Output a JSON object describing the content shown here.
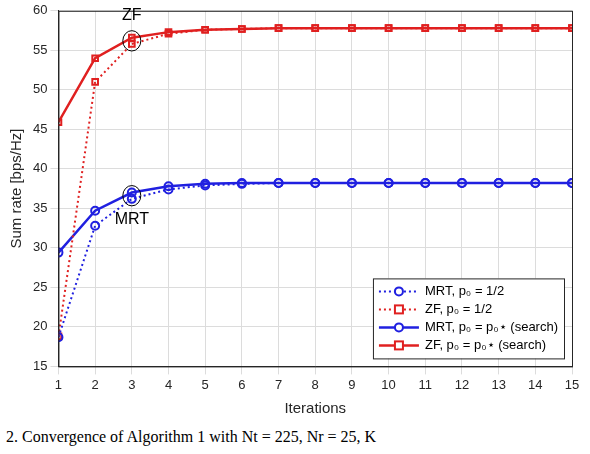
{
  "chart_data": {
    "type": "line",
    "x_label": "Iterations",
    "y_label": "Sum rate [bps/Hz]",
    "x": [
      1,
      2,
      3,
      4,
      5,
      6,
      7,
      8,
      9,
      10,
      11,
      12,
      13,
      14,
      15
    ],
    "series": [
      {
        "name": "MRT, p₀ = 1/2",
        "color": "#2020e0",
        "marker": "circle",
        "line_style": "dotted",
        "values": [
          18.7,
          32.8,
          36.2,
          37.4,
          37.9,
          38.1,
          38.2,
          38.2,
          38.2,
          38.2,
          38.2,
          38.2,
          38.2,
          38.2,
          38.2
        ]
      },
      {
        "name": "ZF, p₀ = 1/2",
        "color": "#e02020",
        "marker": "square",
        "line_style": "dotted",
        "values": [
          18.8,
          51.0,
          55.8,
          57.1,
          57.6,
          57.7,
          57.8,
          57.8,
          57.8,
          57.8,
          57.8,
          57.8,
          57.8,
          57.8,
          57.8
        ]
      },
      {
        "name": "MRT, p₀ = p₀⋆ (search)",
        "color": "#2020e0",
        "marker": "circle",
        "line_style": "solid",
        "values": [
          29.4,
          34.7,
          37.0,
          37.8,
          38.1,
          38.2,
          38.2,
          38.2,
          38.2,
          38.2,
          38.2,
          38.2,
          38.2,
          38.2,
          38.2
        ]
      },
      {
        "name": "ZF, p₀ = p₀⋆ (search)",
        "color": "#e02020",
        "marker": "square",
        "line_style": "solid",
        "values": [
          45.9,
          54.0,
          56.6,
          57.3,
          57.6,
          57.7,
          57.8,
          57.8,
          57.8,
          57.8,
          57.8,
          57.8,
          57.8,
          57.8,
          57.8
        ]
      }
    ],
    "annotations": [
      {
        "text": "ZF",
        "x": 3,
        "y": 59.4
      },
      {
        "text": "MRT",
        "x": 3,
        "y": 33.6
      }
    ],
    "xlim": [
      1,
      15
    ],
    "xticks": [
      1,
      2,
      3,
      4,
      5,
      6,
      7,
      8,
      9,
      10,
      11,
      12,
      13,
      14,
      15
    ],
    "ylim": [
      15,
      60
    ],
    "yticks": [
      15,
      20,
      25,
      30,
      35,
      40,
      45,
      50,
      55,
      60
    ],
    "grid": true,
    "legend": "lower right"
  },
  "caption": "2.  Convergence of Algorithm 1 with Nt = 225, Nr = 25, K"
}
